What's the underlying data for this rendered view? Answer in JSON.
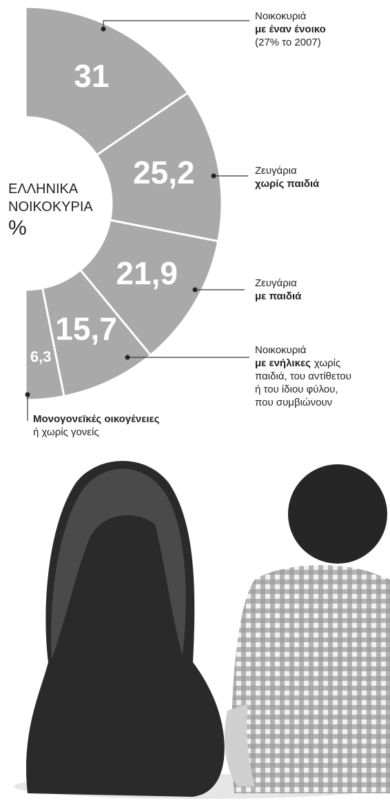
{
  "chart_data": {
    "type": "pie",
    "center_label": [
      "ΕΛΛΗΝΙΚΑ",
      "ΝΟΙΚΟΚΥΡΙΑ"
    ],
    "unit": "%",
    "values": [
      31,
      25.2,
      21.9,
      15.7,
      6.3
    ],
    "value_labels": [
      "31",
      "25,2",
      "21,9",
      "15,7",
      "6,3"
    ],
    "color": "#a9a9a9",
    "labels": [
      [
        [
          {
            "text": "Νοικοκυριά"
          }
        ],
        [
          {
            "text": "με έναν ένοικο",
            "bold": true
          }
        ],
        [
          {
            "text": "(27% το 2007)"
          }
        ]
      ],
      [
        [
          {
            "text": "Ζευγάρια"
          }
        ],
        [
          {
            "text": "χωρίς παιδιά",
            "bold": true
          }
        ]
      ],
      [
        [
          {
            "text": "Ζευγάρια"
          }
        ],
        [
          {
            "text": "με παιδιά",
            "bold": true
          }
        ]
      ],
      [
        [
          {
            "text": "Νοικοκυριά"
          }
        ],
        [
          {
            "text": "με ενήλικες",
            "bold": true
          },
          {
            "text": "χωρίς"
          }
        ],
        [
          {
            "text": "παιδιά, του αντίθετου"
          }
        ],
        [
          {
            "text": "ή του ίδιου φύλου,"
          }
        ],
        [
          {
            "text": "που συμβιώνουν"
          }
        ]
      ],
      [
        [
          {
            "text": "Μονογονεϊκές οικογένειες",
            "bold": true
          }
        ],
        [
          {
            "text": "ή χωρίς γονείς"
          }
        ]
      ]
    ]
  }
}
